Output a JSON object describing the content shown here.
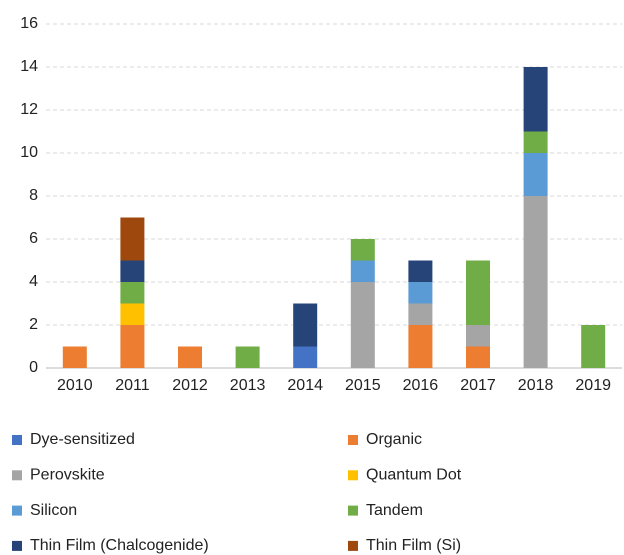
{
  "chart_data": {
    "type": "stacked-bar",
    "categories": [
      "2010",
      "2011",
      "2012",
      "2013",
      "2014",
      "2015",
      "2016",
      "2017",
      "2018",
      "2019"
    ],
    "series": [
      {
        "name": "Dye-sensitized",
        "color": "#4472c4",
        "values": [
          0,
          0,
          0,
          0,
          1,
          0,
          0,
          0,
          0,
          0
        ]
      },
      {
        "name": "Organic",
        "color": "#ed7d31",
        "values": [
          1,
          2,
          1,
          0,
          0,
          0,
          2,
          1,
          0,
          0
        ]
      },
      {
        "name": "Perovskite",
        "color": "#a5a5a5",
        "values": [
          0,
          0,
          0,
          0,
          0,
          4,
          1,
          1,
          8,
          0
        ]
      },
      {
        "name": "Quantum Dot",
        "color": "#ffc000",
        "values": [
          0,
          1,
          0,
          0,
          0,
          0,
          0,
          0,
          0,
          0
        ]
      },
      {
        "name": "Silicon",
        "color": "#5b9bd5",
        "values": [
          0,
          0,
          0,
          0,
          0,
          1,
          1,
          0,
          2,
          0
        ]
      },
      {
        "name": "Tandem",
        "color": "#70ad47",
        "values": [
          0,
          1,
          0,
          1,
          0,
          1,
          0,
          3,
          1,
          2
        ]
      },
      {
        "name": "Thin Film (Chalcogenide)",
        "color": "#264478",
        "values": [
          0,
          1,
          0,
          0,
          2,
          0,
          1,
          0,
          3,
          0
        ]
      },
      {
        "name": "Thin Film (Si)",
        "color": "#9e480e",
        "values": [
          0,
          2,
          0,
          0,
          0,
          0,
          0,
          0,
          0,
          0
        ]
      }
    ],
    "ylim": [
      0,
      16
    ],
    "yticks": [
      0,
      2,
      4,
      6,
      8,
      10,
      12,
      14,
      16
    ],
    "grid": true,
    "legend": "bottom"
  }
}
